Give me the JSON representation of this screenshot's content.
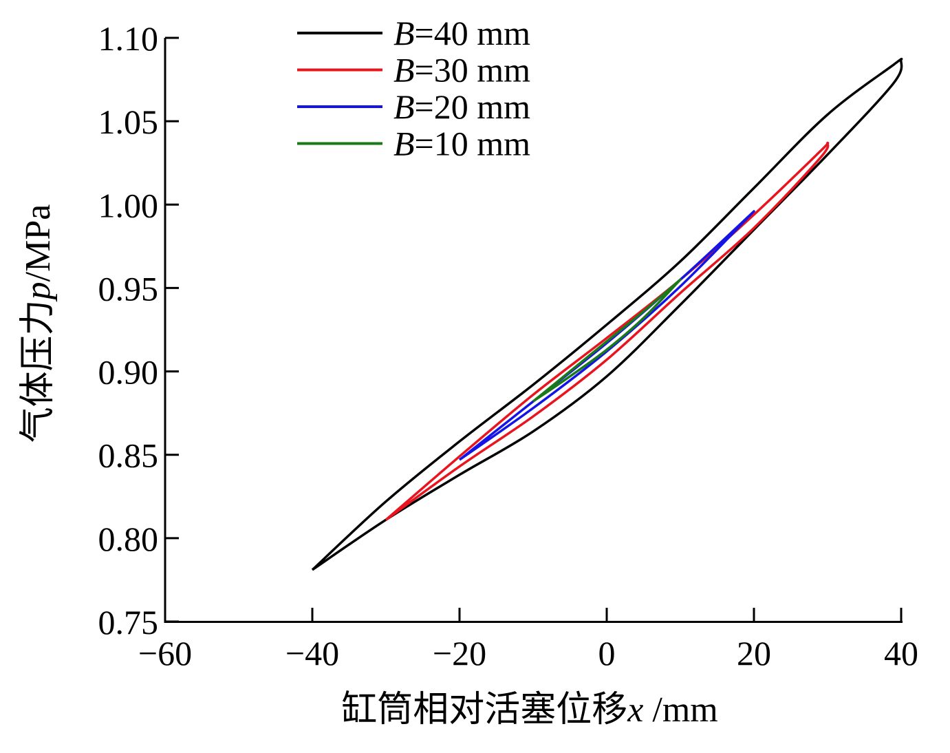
{
  "chart_data": {
    "type": "line",
    "title": "",
    "xlabel": {
      "prefix": "缸筒相对活塞位移",
      "var": "x",
      "unit": " /mm"
    },
    "ylabel": {
      "prefix": "气体压力",
      "var": "p",
      "unit": "/MPa"
    },
    "xlim": [
      -60,
      40
    ],
    "ylim": [
      0.75,
      1.1
    ],
    "xticks": [
      -60,
      -40,
      -20,
      0,
      20,
      40
    ],
    "xtick_labels": [
      "−60",
      "−40",
      "−20",
      "0",
      "20",
      "40"
    ],
    "yticks": [
      0.75,
      0.8,
      0.85,
      0.9,
      0.95,
      1.0,
      1.05,
      1.1
    ],
    "ytick_labels": [
      "0.75",
      "0.80",
      "0.85",
      "0.90",
      "0.95",
      "1.00",
      "1.05",
      "1.10"
    ],
    "grid": false,
    "legend_position": "top-left",
    "series": [
      {
        "name": "B=40 mm",
        "label_var": "B",
        "label_rest": "=40 mm",
        "color": "#000000",
        "upper": [
          [
            -40,
            0.781
          ],
          [
            -30,
            0.822
          ],
          [
            -20,
            0.858
          ],
          [
            -10,
            0.892
          ],
          [
            0,
            0.928
          ],
          [
            10,
            0.966
          ],
          [
            20,
            1.01
          ],
          [
            30,
            1.054
          ],
          [
            39,
            1.084
          ],
          [
            40,
            1.087
          ]
        ],
        "lower": [
          [
            40,
            1.087
          ],
          [
            39,
            1.073
          ],
          [
            30,
            1.03
          ],
          [
            20,
            0.985
          ],
          [
            10,
            0.94
          ],
          [
            0,
            0.897
          ],
          [
            -10,
            0.864
          ],
          [
            -20,
            0.838
          ],
          [
            -30,
            0.811
          ],
          [
            -40,
            0.781
          ]
        ]
      },
      {
        "name": "B=30 mm",
        "label_var": "B",
        "label_rest": "=30 mm",
        "color": "#e8141e",
        "upper": [
          [
            -30,
            0.811
          ],
          [
            -20,
            0.849
          ],
          [
            -10,
            0.886
          ],
          [
            0,
            0.92
          ],
          [
            10,
            0.955
          ],
          [
            20,
            0.994
          ],
          [
            29,
            1.032
          ],
          [
            30,
            1.037
          ]
        ],
        "lower": [
          [
            30,
            1.037
          ],
          [
            29,
            1.028
          ],
          [
            20,
            0.986
          ],
          [
            10,
            0.947
          ],
          [
            0,
            0.907
          ],
          [
            -10,
            0.873
          ],
          [
            -20,
            0.843
          ],
          [
            -30,
            0.811
          ]
        ]
      },
      {
        "name": "B=20 mm",
        "label_var": "B",
        "label_rest": "=20 mm",
        "color": "#1414e6",
        "upper": [
          [
            -20,
            0.847
          ],
          [
            -10,
            0.882
          ],
          [
            0,
            0.917
          ],
          [
            10,
            0.955
          ],
          [
            20,
            0.996
          ]
        ],
        "lower": [
          [
            20,
            0.996
          ],
          [
            10,
            0.951
          ],
          [
            0,
            0.912
          ],
          [
            -10,
            0.878
          ],
          [
            -20,
            0.847
          ]
        ]
      },
      {
        "name": "B=10 mm",
        "label_var": "B",
        "label_rest": "=10 mm",
        "color": "#1a7a1a",
        "upper": [
          [
            -10,
            0.882
          ],
          [
            -5,
            0.9
          ],
          [
            0,
            0.918
          ],
          [
            5,
            0.936
          ],
          [
            10,
            0.955
          ]
        ],
        "lower": [
          [
            10,
            0.955
          ],
          [
            5,
            0.932
          ],
          [
            0,
            0.913
          ],
          [
            -5,
            0.897
          ],
          [
            -10,
            0.882
          ]
        ]
      }
    ]
  }
}
